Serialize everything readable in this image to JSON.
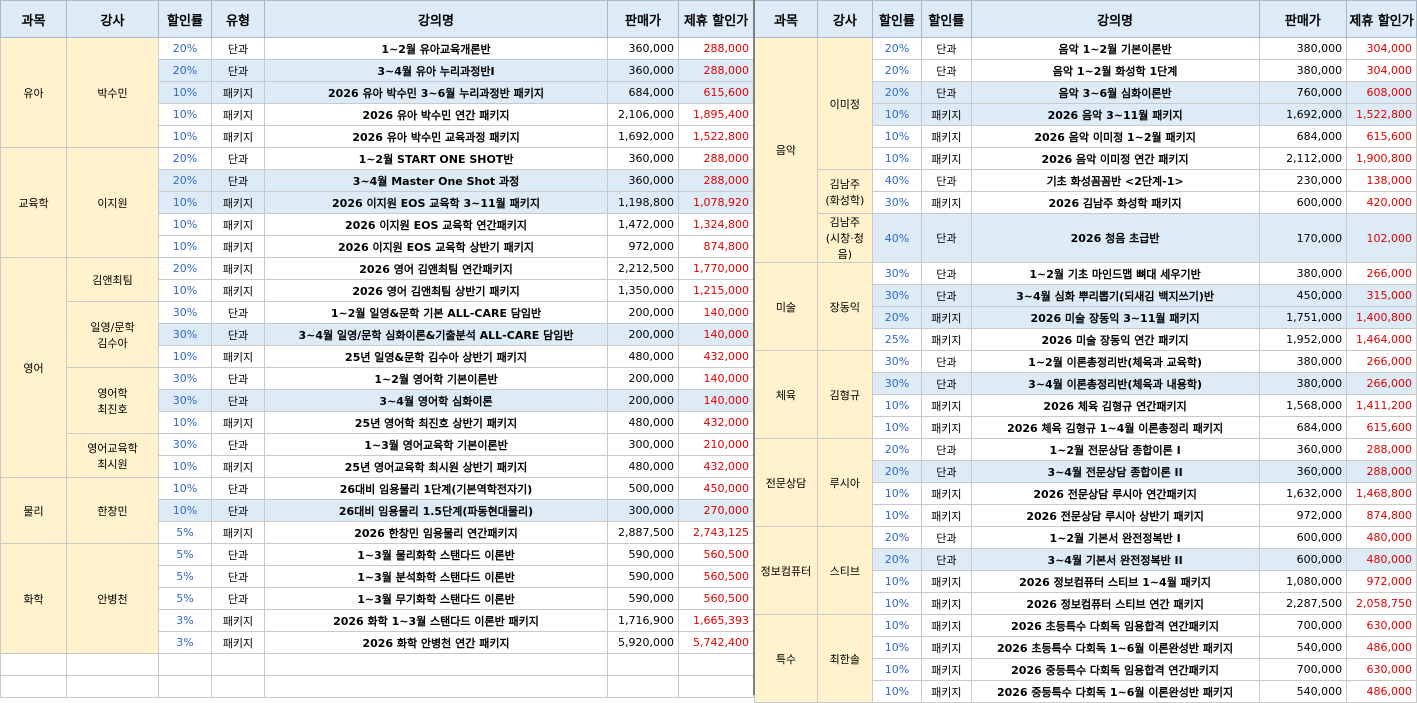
{
  "header": {
    "subject": "과목",
    "instructor": "강사",
    "discount_rate": "할인률",
    "type_left": "유형",
    "type_right": "할인률",
    "lecture_name": "강의명",
    "price": "판매가",
    "partner_price": "제휴 할인가"
  },
  "colors": {
    "header_bg": "#ddebf7",
    "group_bg": "#fff2cc",
    "highlight_row_bg": "#ddebf7",
    "rate_text": "#2f67c9",
    "discount_text": "#e00000"
  },
  "left_groups": [
    {
      "subject": "유아",
      "instructors": [
        {
          "name": "박수민",
          "rows": [
            {
              "rate": "20%",
              "type": "단과",
              "title": "1~2월 유아교육개론반",
              "price": "360,000",
              "discount": "288,000",
              "highlight": false
            },
            {
              "rate": "20%",
              "type": "단과",
              "title": "3~4월 유아 누리과정반I",
              "price": "360,000",
              "discount": "288,000",
              "highlight": true
            },
            {
              "rate": "10%",
              "type": "패키지",
              "title": "2026 유아 박수민 3~6월 누리과정반 패키지",
              "price": "684,000",
              "discount": "615,600",
              "highlight": true
            },
            {
              "rate": "10%",
              "type": "패키지",
              "title": "2026 유아 박수민 연간 패키지",
              "price": "2,106,000",
              "discount": "1,895,400",
              "highlight": false
            },
            {
              "rate": "10%",
              "type": "패키지",
              "title": "2026 유아 박수민 교육과정 패키지",
              "price": "1,692,000",
              "discount": "1,522,800",
              "highlight": false
            }
          ]
        }
      ]
    },
    {
      "subject": "교육학",
      "instructors": [
        {
          "name": "이지원",
          "rows": [
            {
              "rate": "20%",
              "type": "단과",
              "title": "1~2월 START ONE SHOT반",
              "price": "360,000",
              "discount": "288,000",
              "highlight": false
            },
            {
              "rate": "20%",
              "type": "단과",
              "title": "3~4월 Master One Shot 과정",
              "price": "360,000",
              "discount": "288,000",
              "highlight": true
            },
            {
              "rate": "10%",
              "type": "패키지",
              "title": "2026 이지원 EOS 교육학 3~11월 패키지",
              "price": "1,198,800",
              "discount": "1,078,920",
              "highlight": true
            },
            {
              "rate": "10%",
              "type": "패키지",
              "title": "2026 이지원 EOS 교육학 연간패키지",
              "price": "1,472,000",
              "discount": "1,324,800",
              "highlight": false
            },
            {
              "rate": "10%",
              "type": "패키지",
              "title": "2026 이지원 EOS 교육학 상반기 패키지",
              "price": "972,000",
              "discount": "874,800",
              "highlight": false
            }
          ]
        }
      ]
    },
    {
      "subject": "영어",
      "instructors": [
        {
          "name": "김앤최팀",
          "rows": [
            {
              "rate": "20%",
              "type": "패키지",
              "title": "2026 영어 김앤최팀 연간패키지",
              "price": "2,212,500",
              "discount": "1,770,000",
              "highlight": false
            },
            {
              "rate": "10%",
              "type": "패키지",
              "title": "2026 영어 김앤최팀 상반기 패키지",
              "price": "1,350,000",
              "discount": "1,215,000",
              "highlight": false
            }
          ]
        },
        {
          "name": "일영/문학\n김수아",
          "rows": [
            {
              "rate": "30%",
              "type": "단과",
              "title": "1~2월 일영&문학 기본 ALL-CARE 담임반",
              "price": "200,000",
              "discount": "140,000",
              "highlight": false
            },
            {
              "rate": "30%",
              "type": "단과",
              "title": "3~4월 일영/문학 심화이론&기출분석 ALL-CARE 담임반",
              "price": "200,000",
              "discount": "140,000",
              "highlight": true
            },
            {
              "rate": "10%",
              "type": "패키지",
              "title": "25년 일영&문학 김수아 상반기 패키지",
              "price": "480,000",
              "discount": "432,000",
              "highlight": false
            }
          ]
        },
        {
          "name": "영어학\n최진호",
          "rows": [
            {
              "rate": "30%",
              "type": "단과",
              "title": "1~2월 영어학 기본이론반",
              "price": "200,000",
              "discount": "140,000",
              "highlight": false
            },
            {
              "rate": "30%",
              "type": "단과",
              "title": "3~4월 영어학 심화이론",
              "price": "200,000",
              "discount": "140,000",
              "highlight": true
            },
            {
              "rate": "10%",
              "type": "패키지",
              "title": "25년 영어학 최진호 상반기 패키지",
              "price": "480,000",
              "discount": "432,000",
              "highlight": false
            }
          ]
        },
        {
          "name": "영어교육학\n최시원",
          "rows": [
            {
              "rate": "30%",
              "type": "단과",
              "title": "1~3월 영어교육학 기본이론반",
              "price": "300,000",
              "discount": "210,000",
              "highlight": false
            },
            {
              "rate": "10%",
              "type": "패키지",
              "title": "25년 영어교육학 최시원 상반기 패키지",
              "price": "480,000",
              "discount": "432,000",
              "highlight": false
            }
          ]
        }
      ]
    },
    {
      "subject": "물리",
      "instructors": [
        {
          "name": "한창민",
          "rows": [
            {
              "rate": "10%",
              "type": "단과",
              "title": "26대비 임용물리 1단계(기본역학전자기)",
              "price": "500,000",
              "discount": "450,000",
              "highlight": false
            },
            {
              "rate": "10%",
              "type": "단과",
              "title": "26대비 임용물리 1.5단계(파동현대물리)",
              "price": "300,000",
              "discount": "270,000",
              "highlight": true
            },
            {
              "rate": "5%",
              "type": "패키지",
              "title": "2026 한창민 임용물리 연간패키지",
              "price": "2,887,500",
              "discount": "2,743,125",
              "highlight": false
            }
          ]
        }
      ]
    },
    {
      "subject": "화학",
      "instructors": [
        {
          "name": "안병천",
          "rows": [
            {
              "rate": "5%",
              "type": "단과",
              "title": "1~3월 물리화학 스탠다드 이론반",
              "price": "590,000",
              "discount": "560,500",
              "highlight": false
            },
            {
              "rate": "5%",
              "type": "단과",
              "title": "1~3월 분석화학 스탠다드 이론반",
              "price": "590,000",
              "discount": "560,500",
              "highlight": false
            },
            {
              "rate": "5%",
              "type": "단과",
              "title": "1~3월 무기화학 스탠다드 이론반",
              "price": "590,000",
              "discount": "560,500",
              "highlight": false
            },
            {
              "rate": "3%",
              "type": "패키지",
              "title": "2026 화학 1~3월 스탠다드 이론반 패키지",
              "price": "1,716,900",
              "discount": "1,665,393",
              "highlight": false
            },
            {
              "rate": "3%",
              "type": "패키지",
              "title": "2026 화학 안병천 연간 패키지",
              "price": "5,920,000",
              "discount": "5,742,400",
              "highlight": false
            }
          ]
        }
      ]
    }
  ],
  "right_groups": [
    {
      "subject": "음악",
      "instructors": [
        {
          "name": "이미정",
          "rows": [
            {
              "rate": "20%",
              "type": "단과",
              "title": "음악 1~2월 기본이론반",
              "price": "380,000",
              "discount": "304,000",
              "highlight": false
            },
            {
              "rate": "20%",
              "type": "단과",
              "title": "음악 1~2월 화성학 1단계",
              "price": "380,000",
              "discount": "304,000",
              "highlight": false
            },
            {
              "rate": "20%",
              "type": "단과",
              "title": "음악 3~6월 심화이론반",
              "price": "760,000",
              "discount": "608,000",
              "highlight": true
            },
            {
              "rate": "10%",
              "type": "패키지",
              "title": "2026 음악 3~11월 패키지",
              "price": "1,692,000",
              "discount": "1,522,800",
              "highlight": true
            },
            {
              "rate": "10%",
              "type": "패키지",
              "title": "2026 음악 이미정 1~2월 패키지",
              "price": "684,000",
              "discount": "615,600",
              "highlight": false
            },
            {
              "rate": "10%",
              "type": "패키지",
              "title": "2026 음악 이미정 연간 패키지",
              "price": "2,112,000",
              "discount": "1,900,800",
              "highlight": false
            }
          ]
        },
        {
          "name": "김남주\n(화성학)",
          "rows": [
            {
              "rate": "40%",
              "type": "단과",
              "title": "기초 화성꼼꼼반 <2단계-1>",
              "price": "230,000",
              "discount": "138,000",
              "highlight": false
            },
            {
              "rate": "30%",
              "type": "패키지",
              "title": "2026 김남주 화성학 패키지",
              "price": "600,000",
              "discount": "420,000",
              "highlight": false
            }
          ]
        },
        {
          "name": "김남주\n(시창·청음)",
          "tall": true,
          "rows": [
            {
              "rate": "40%",
              "type": "단과",
              "title": "2026 청음 초급반",
              "price": "170,000",
              "discount": "102,000",
              "highlight": true
            }
          ]
        }
      ]
    },
    {
      "subject": "미술",
      "instructors": [
        {
          "name": "장동익",
          "rows": [
            {
              "rate": "30%",
              "type": "단과",
              "title": "1~2월 기초 마인드맵 뼈대 세우기반",
              "price": "380,000",
              "discount": "266,000",
              "highlight": false
            },
            {
              "rate": "30%",
              "type": "단과",
              "title": "3~4월 심화 뿌리뽑기(되새김 백지쓰기)반",
              "price": "450,000",
              "discount": "315,000",
              "highlight": true
            },
            {
              "rate": "20%",
              "type": "패키지",
              "title": "2026 미술 장동익 3~11월 패키지",
              "price": "1,751,000",
              "discount": "1,400,800",
              "highlight": true
            },
            {
              "rate": "25%",
              "type": "패키지",
              "title": "2026 미술 장동익 연간 패키지",
              "price": "1,952,000",
              "discount": "1,464,000",
              "highlight": false
            }
          ]
        }
      ]
    },
    {
      "subject": "체육",
      "instructors": [
        {
          "name": "김형규",
          "rows": [
            {
              "rate": "30%",
              "type": "단과",
              "title": "1~2월 이론총정리반(체육과 교육학)",
              "price": "380,000",
              "discount": "266,000",
              "highlight": false
            },
            {
              "rate": "30%",
              "type": "단과",
              "title": "3~4월 이론총정리반(체육과 내용학)",
              "price": "380,000",
              "discount": "266,000",
              "highlight": true
            },
            {
              "rate": "10%",
              "type": "패키지",
              "title": "2026 체육 김형규 연간패키지",
              "price": "1,568,000",
              "discount": "1,411,200",
              "highlight": false
            },
            {
              "rate": "10%",
              "type": "패키지",
              "title": "2026 체육 김형규 1~4월 이론총정리 패키지",
              "price": "684,000",
              "discount": "615,600",
              "highlight": false
            }
          ]
        }
      ]
    },
    {
      "subject": "전문상담",
      "instructors": [
        {
          "name": "루시아",
          "rows": [
            {
              "rate": "20%",
              "type": "단과",
              "title": "1~2월 전문상담 종합이론 I",
              "price": "360,000",
              "discount": "288,000",
              "highlight": false
            },
            {
              "rate": "20%",
              "type": "단과",
              "title": "3~4월 전문상담 종합이론 II",
              "price": "360,000",
              "discount": "288,000",
              "highlight": true
            },
            {
              "rate": "10%",
              "type": "패키지",
              "title": "2026 전문상담 루시아 연간패키지",
              "price": "1,632,000",
              "discount": "1,468,800",
              "highlight": false
            },
            {
              "rate": "10%",
              "type": "패키지",
              "title": "2026 전문상담 루시아 상반기 패키지",
              "price": "972,000",
              "discount": "874,800",
              "highlight": false
            }
          ]
        }
      ]
    },
    {
      "subject": "정보컴퓨터",
      "instructors": [
        {
          "name": "스티브",
          "rows": [
            {
              "rate": "20%",
              "type": "단과",
              "title": "1~2월 기본서 완전정복반 I",
              "price": "600,000",
              "discount": "480,000",
              "highlight": false
            },
            {
              "rate": "20%",
              "type": "단과",
              "title": "3~4월 기본서 완전정복반 II",
              "price": "600,000",
              "discount": "480,000",
              "highlight": true
            },
            {
              "rate": "10%",
              "type": "패키지",
              "title": "2026 정보컴퓨터 스티브 1~4월 패키지",
              "price": "1,080,000",
              "discount": "972,000",
              "highlight": false
            },
            {
              "rate": "10%",
              "type": "패키지",
              "title": "2026 정보컴퓨터 스티브 연간 패키지",
              "price": "2,287,500",
              "discount": "2,058,750",
              "highlight": false
            }
          ]
        }
      ]
    },
    {
      "subject": "특수",
      "instructors": [
        {
          "name": "최한솔",
          "rows": [
            {
              "rate": "10%",
              "type": "패키지",
              "title": "2026 초등특수 다회독 임용합격 연간패키지",
              "price": "700,000",
              "discount": "630,000",
              "highlight": false
            },
            {
              "rate": "10%",
              "type": "패키지",
              "title": "2026 초등특수 다회독 1~6월 이론완성반 패키지",
              "price": "540,000",
              "discount": "486,000",
              "highlight": false
            },
            {
              "rate": "10%",
              "type": "패키지",
              "title": "2026 중등특수 다회독 임용합격 연간패키지",
              "price": "700,000",
              "discount": "630,000",
              "highlight": false
            },
            {
              "rate": "10%",
              "type": "패키지",
              "title": "2026 중등특수 다회독 1~6월 이론완성반 패키지",
              "price": "540,000",
              "discount": "486,000",
              "highlight": false
            }
          ]
        }
      ]
    }
  ]
}
